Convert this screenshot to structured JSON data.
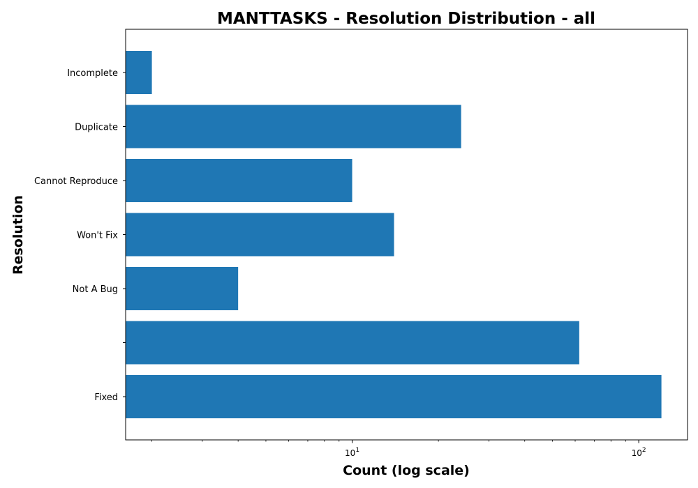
{
  "chart_data": {
    "type": "bar",
    "orientation": "horizontal",
    "title": "MANTTASKS - Resolution Distribution - all",
    "xlabel": "Count (log scale)",
    "ylabel": "Resolution",
    "x_scale": "log",
    "xlim": [
      1.62,
      148
    ],
    "x_tick_labels": [
      {
        "value": 10,
        "base": "10",
        "exponent": "1"
      },
      {
        "value": 100,
        "base": "10",
        "exponent": "2"
      }
    ],
    "categories": [
      "Fixed",
      "",
      "Not A Bug",
      "Won't Fix",
      "Cannot Reproduce",
      "Duplicate",
      "Incomplete"
    ],
    "values": [
      120,
      62,
      4,
      14,
      10,
      24,
      2
    ],
    "bar_color": "#1f77b4",
    "grid": false,
    "legend": "none"
  }
}
